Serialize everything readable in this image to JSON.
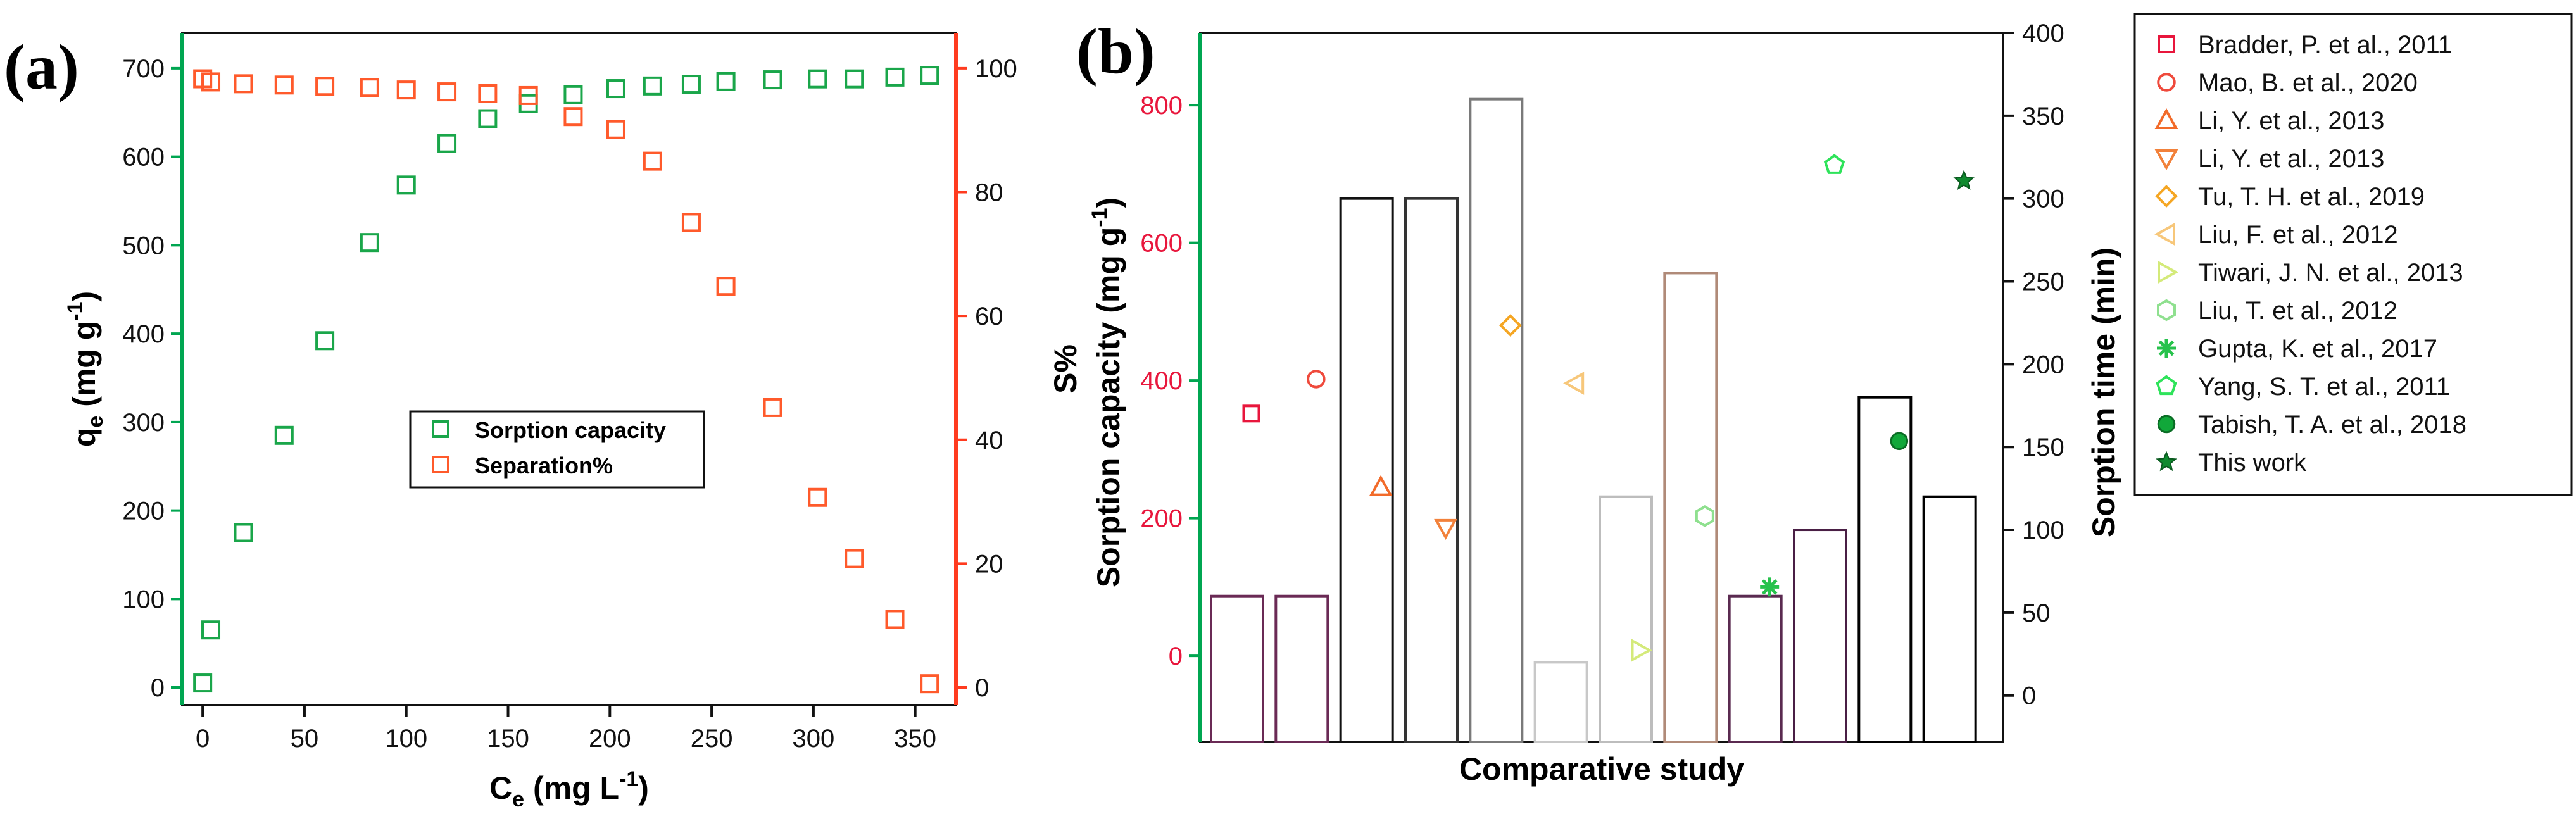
{
  "chart_data": [
    {
      "panel_label": "(a)",
      "type": "scatter",
      "xlabel_main": "C",
      "xlabel_sub": "e",
      "xlabel_rest": " (mg L",
      "xlabel_sup": "-1",
      "xlabel_end": ")",
      "ylabel_main": "q",
      "ylabel_sub": "e",
      "ylabel_rest": " (mg g",
      "ylabel_sup": "-1",
      "ylabel_end": ")",
      "y2label": "S%",
      "xlim": [
        -10,
        370
      ],
      "ylim": [
        -20,
        740
      ],
      "y2lim": [
        -2.857,
        105.714
      ],
      "xticks": [
        0,
        50,
        100,
        150,
        200,
        250,
        300,
        350
      ],
      "yticks": [
        0,
        100,
        200,
        300,
        400,
        500,
        600,
        700
      ],
      "y2ticks": [
        0,
        20,
        40,
        60,
        80,
        100
      ],
      "colors": {
        "left_axis": "#00a651",
        "right_axis": "#ff3b1f"
      },
      "series": [
        {
          "name": "Sorption capacity",
          "axis": "left",
          "color": "#1aa64a",
          "x": [
            0,
            4,
            20,
            40,
            60,
            82,
            100,
            120,
            140,
            160,
            182,
            203,
            221,
            240,
            257,
            280,
            302,
            320,
            340,
            357
          ],
          "y": [
            5,
            65,
            175,
            285,
            392,
            503,
            568,
            615,
            643,
            660,
            670,
            677,
            680,
            682,
            685,
            687,
            688,
            688,
            690,
            692
          ]
        },
        {
          "name": "Separation%",
          "axis": "right",
          "color": "#ff5a2b",
          "x": [
            0,
            4,
            20,
            40,
            60,
            82,
            100,
            120,
            140,
            160,
            182,
            203,
            221,
            240,
            257,
            280,
            302,
            320,
            340,
            357
          ],
          "y": [
            98.3,
            97.8,
            97.5,
            97.3,
            97.1,
            96.9,
            96.5,
            96.2,
            95.9,
            95.6,
            92.2,
            90.1,
            85.0,
            75.1,
            64.8,
            45.2,
            30.7,
            20.8,
            11.0,
            0.6
          ]
        }
      ]
    },
    {
      "panel_label": "(b)",
      "type": "bar+scatter",
      "xlabel": "Comparative study",
      "ylabel": "Sorption capacity (mg g",
      "ylabel_sup": "-1",
      "ylabel_end": ")",
      "y2label": "Sorption time (min)",
      "ylim": [
        -125,
        905
      ],
      "y2lim": [
        -28,
        400
      ],
      "yticks": [
        0,
        200,
        400,
        600,
        800
      ],
      "y2ticks": [
        0,
        50,
        100,
        150,
        200,
        250,
        300,
        350,
        400
      ],
      "colors": {
        "left_axis": "#00a651",
        "left_ticklabel": "#e8163c"
      },
      "studies": [
        {
          "name": "Bradder, P. et al., 2011",
          "marker": "square",
          "color": "#e8163c",
          "capacity": 352,
          "time": 60,
          "bar_color": "#6a2a55"
        },
        {
          "name": "Mao, B. et al., 2020",
          "marker": "circle",
          "color": "#ef4a3c",
          "capacity": 402,
          "time": 60,
          "bar_color": "#6a2a55"
        },
        {
          "name": "Li, Y. et al., 2013",
          "marker": "triangle-up",
          "color": "#f26b2a",
          "capacity": 245,
          "time": 300,
          "bar_color": "#111111"
        },
        {
          "name": "Li, Y. et al., 2013",
          "marker": "triangle-down",
          "color": "#f2813a",
          "capacity": 186,
          "time": 300,
          "bar_color": "#333333"
        },
        {
          "name": "Tu, T. H. et al., 2019",
          "marker": "diamond",
          "color": "#f5a623",
          "capacity": 480,
          "time": 360,
          "bar_color": "#7a7a7a"
        },
        {
          "name": "Liu, F. et al., 2012",
          "marker": "triangle-left",
          "color": "#f7c77a",
          "capacity": 396,
          "time": 20,
          "bar_color": "#c8c8c8"
        },
        {
          "name": "Tiwari, J. N. et al., 2013",
          "marker": "triangle-right",
          "color": "#d4ea7a",
          "capacity": 8,
          "time": 120,
          "bar_color": "#bdbdbd"
        },
        {
          "name": "Liu, T. et al., 2012",
          "marker": "hexagon",
          "color": "#8fe08f",
          "capacity": 203,
          "time": 255,
          "bar_color": "#b08a78"
        },
        {
          "name": "Gupta, K. et al., 2017",
          "marker": "star-asterisk",
          "color": "#27c24c",
          "capacity": 100,
          "time": 60,
          "bar_color": "#5a2a50"
        },
        {
          "name": "Yang, S. T. et al., 2011",
          "marker": "pentagon",
          "color": "#2ee35a",
          "capacity": 713,
          "time": 100,
          "bar_color": "#4a1f45"
        },
        {
          "name": "Tabish, T. A. et al., 2018",
          "marker": "filled-circle",
          "color": "#11a83a",
          "capacity": 312,
          "time": 180,
          "bar_color": "#000000"
        },
        {
          "name": "This work",
          "marker": "star",
          "color": "#0f8a2e",
          "capacity": 690,
          "time": 120,
          "bar_color": "#000000"
        }
      ]
    }
  ]
}
